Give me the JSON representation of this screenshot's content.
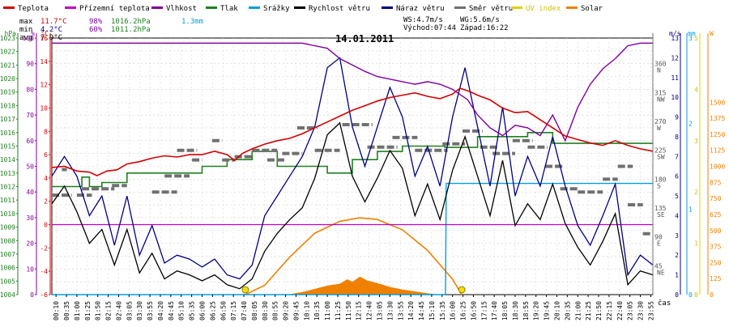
{
  "chart_data": {
    "type": "line",
    "title": "14.01.2011",
    "legend": [
      {
        "key": "temp",
        "label": "Teplota",
        "color": "#d40000"
      },
      {
        "key": "feels",
        "label": "Přízemní teplota",
        "color": "#c000c0"
      },
      {
        "key": "hum",
        "label": "Vlhkost",
        "color": "#8000a0"
      },
      {
        "key": "press",
        "label": "Tlak",
        "color": "#208020"
      },
      {
        "key": "rain",
        "label": "Srážky",
        "color": "#00a0e0"
      },
      {
        "key": "ws",
        "label": "Rychlost větru",
        "color": "#000000"
      },
      {
        "key": "gust",
        "label": "Náraz větru",
        "color": "#000080"
      },
      {
        "key": "dir",
        "label": "Směr větru",
        "color": "#707070"
      },
      {
        "key": "uv",
        "label": "UV index",
        "color": "#e0d000"
      },
      {
        "key": "solar",
        "label": "Solar",
        "color": "#f08000"
      }
    ],
    "stats": {
      "max_label": "max",
      "max_temp": "11.7°C",
      "max_hum": "98%",
      "max_press": "1016.2hPa",
      "rain_total": "1.3mm",
      "min_label": "min",
      "min_temp": "4.2°C",
      "min_hum": "60%",
      "min_press": "1011.2hPa",
      "avg_label": "avg",
      "avg_temp": "7.9°C"
    },
    "wind_info": {
      "ws": "WS:4.7m/s",
      "wg": "WG:5.6m/s",
      "sunrise": "Východ:07:44",
      "sunset": "Západ:16:22"
    },
    "axes": {
      "hpa_title": "hPa",
      "pct_title": "%",
      "c_title": "°C",
      "ms_title": "m/s",
      "mm_title": "mm",
      "w_title": "W",
      "x_title": "čas",
      "hpa_ticks": [
        "1004",
        "1005",
        "1006",
        "1007",
        "1008",
        "1009",
        "1010",
        "1011",
        "1012",
        "1013",
        "1014",
        "1015",
        "1016",
        "1017",
        "1018",
        "1019",
        "1020",
        "1021",
        "1022",
        "1023"
      ],
      "pct_ticks": [
        "0",
        "10",
        "20",
        "30",
        "40",
        "50",
        "60",
        "70",
        "80",
        "90",
        "100"
      ],
      "c_ticks": [
        "-6",
        "-4",
        "-2",
        "0",
        "2",
        "4",
        "6",
        "8",
        "10",
        "12",
        "14",
        "16"
      ],
      "dir_ticks": [
        [
          "360",
          "N"
        ],
        [
          "315",
          "NW"
        ],
        [
          "270",
          "W"
        ],
        [
          "225",
          "SW"
        ],
        [
          "180",
          "S"
        ],
        [
          "135",
          "SE"
        ],
        [
          "90",
          "E"
        ],
        [
          "45",
          "NE"
        ]
      ],
      "ms_ticks": [
        "0",
        "1",
        "2",
        "3",
        "4",
        "5",
        "6",
        "7",
        "8",
        "9",
        "10",
        "11",
        "12",
        "13"
      ],
      "mm_ticks": [
        "0",
        "1",
        "2",
        "3"
      ],
      "uv_ticks": [
        "0",
        "1",
        "2",
        "3",
        "4",
        "5"
      ],
      "w_ticks": [
        "0",
        "125",
        "250",
        "375",
        "500",
        "625",
        "750",
        "875",
        "1000",
        "1125",
        "1250",
        "1375",
        "1500"
      ],
      "x_ticks": [
        "00:10",
        "00:35",
        "01:00",
        "01:25",
        "01:50",
        "02:15",
        "02:40",
        "03:05",
        "03:30",
        "03:55",
        "04:20",
        "04:45",
        "05:10",
        "05:35",
        "06:00",
        "06:25",
        "06:50",
        "07:15",
        "07:40",
        "08:05",
        "08:30",
        "08:55",
        "09:20",
        "09:45",
        "10:10",
        "10:35",
        "11:00",
        "11:25",
        "11:50",
        "12:15",
        "12:40",
        "13:05",
        "13:30",
        "13:55",
        "14:20",
        "14:45",
        "15:10",
        "15:35",
        "16:00",
        "16:25",
        "16:50",
        "17:15",
        "17:40",
        "18:05",
        "18:30",
        "18:55",
        "19:20",
        "19:45",
        "20:10",
        "20:35",
        "21:00",
        "21:25",
        "21:50",
        "22:15",
        "22:40",
        "23:05",
        "23:30",
        "23:55"
      ],
      "temp_range": [
        -6,
        16
      ],
      "hum_range": [
        0,
        100
      ],
      "press_range": [
        1004,
        1023
      ],
      "wind_range": [
        0,
        13
      ],
      "dir_range": [
        0,
        400
      ],
      "rain_range": [
        0,
        3
      ],
      "solar_range": [
        0,
        1500
      ],
      "hours_range": [
        0,
        24
      ]
    },
    "series": {
      "temp_c": [
        [
          0,
          4.9
        ],
        [
          0.5,
          5.0
        ],
        [
          1.0,
          4.6
        ],
        [
          1.5,
          4.5
        ],
        [
          1.8,
          4.2
        ],
        [
          2.2,
          4.6
        ],
        [
          2.6,
          4.7
        ],
        [
          3.0,
          5.2
        ],
        [
          3.5,
          5.4
        ],
        [
          4.0,
          5.7
        ],
        [
          4.5,
          5.9
        ],
        [
          5.0,
          5.8
        ],
        [
          5.5,
          6.0
        ],
        [
          6.0,
          6.0
        ],
        [
          6.5,
          6.3
        ],
        [
          7.0,
          6.0
        ],
        [
          7.3,
          5.5
        ],
        [
          7.6,
          6.1
        ],
        [
          8.0,
          6.5
        ],
        [
          8.5,
          6.9
        ],
        [
          9.0,
          7.2
        ],
        [
          9.5,
          7.4
        ],
        [
          10.0,
          7.8
        ],
        [
          10.5,
          8.3
        ],
        [
          11.0,
          8.8
        ],
        [
          11.5,
          9.3
        ],
        [
          12.0,
          9.8
        ],
        [
          12.5,
          10.2
        ],
        [
          13.0,
          10.6
        ],
        [
          13.5,
          10.9
        ],
        [
          14.0,
          11.1
        ],
        [
          14.5,
          11.3
        ],
        [
          15.0,
          11.0
        ],
        [
          15.5,
          10.8
        ],
        [
          16.0,
          11.2
        ],
        [
          16.3,
          11.7
        ],
        [
          16.7,
          11.4
        ],
        [
          17.0,
          11.1
        ],
        [
          17.5,
          10.7
        ],
        [
          18.0,
          10.0
        ],
        [
          18.5,
          9.6
        ],
        [
          19.0,
          9.7
        ],
        [
          19.5,
          9.0
        ],
        [
          20.0,
          8.3
        ],
        [
          20.5,
          7.6
        ],
        [
          21.0,
          7.3
        ],
        [
          21.5,
          7.0
        ],
        [
          22.0,
          6.8
        ],
        [
          22.5,
          7.2
        ],
        [
          23.0,
          6.8
        ],
        [
          23.5,
          6.5
        ],
        [
          24.0,
          6.3
        ]
      ],
      "feels_c": [
        [
          0,
          0
        ],
        [
          24,
          0
        ]
      ],
      "hum_pct": [
        [
          0,
          98
        ],
        [
          10.0,
          98
        ],
        [
          11.0,
          96
        ],
        [
          11.5,
          92
        ],
        [
          12.5,
          87
        ],
        [
          13.0,
          85
        ],
        [
          14.0,
          83
        ],
        [
          14.5,
          82
        ],
        [
          15.0,
          83
        ],
        [
          15.5,
          82
        ],
        [
          16.0,
          80
        ],
        [
          16.6,
          76
        ],
        [
          17.0,
          70
        ],
        [
          17.5,
          65
        ],
        [
          18.0,
          62
        ],
        [
          18.5,
          66
        ],
        [
          19.0,
          65
        ],
        [
          19.5,
          62
        ],
        [
          20.0,
          70
        ],
        [
          20.5,
          60
        ],
        [
          21.0,
          73
        ],
        [
          21.5,
          82
        ],
        [
          22.0,
          88
        ],
        [
          22.5,
          92
        ],
        [
          23.0,
          97
        ],
        [
          23.5,
          98
        ],
        [
          24.0,
          98
        ]
      ],
      "press_hpa": [
        [
          0,
          1012.0
        ],
        [
          1.0,
          1012.0
        ],
        [
          1.2,
          1012.7
        ],
        [
          1.5,
          1012.0
        ],
        [
          2.0,
          1012.3
        ],
        [
          2.5,
          1012.3
        ],
        [
          3.0,
          1013.0
        ],
        [
          4.0,
          1013.0
        ],
        [
          5.0,
          1013.0
        ],
        [
          6.0,
          1013.5
        ],
        [
          7.0,
          1014.0
        ],
        [
          7.5,
          1014.0
        ],
        [
          8.0,
          1014.6
        ],
        [
          9.0,
          1013.5
        ],
        [
          10.0,
          1013.5
        ],
        [
          11.0,
          1013.0
        ],
        [
          12.0,
          1014.0
        ],
        [
          13.0,
          1014.6
        ],
        [
          14.0,
          1015.0
        ],
        [
          15.0,
          1015.0
        ],
        [
          15.7,
          1014.9
        ],
        [
          16.2,
          1014.9
        ],
        [
          17.0,
          1015.7
        ],
        [
          18.0,
          1015.7
        ],
        [
          19.0,
          1016.0
        ],
        [
          20.0,
          1015.2
        ],
        [
          21.0,
          1015.2
        ],
        [
          22.0,
          1015.2
        ],
        [
          23.0,
          1015.2
        ],
        [
          24.0,
          1015.2
        ]
      ],
      "ws_ms": [
        [
          0,
          4.6
        ],
        [
          0.5,
          5.5
        ],
        [
          1.0,
          4.2
        ],
        [
          1.5,
          2.6
        ],
        [
          2.0,
          3.3
        ],
        [
          2.5,
          1.5
        ],
        [
          3.0,
          3.3
        ],
        [
          3.5,
          1.1
        ],
        [
          4.0,
          2.1
        ],
        [
          4.5,
          0.8
        ],
        [
          5.0,
          1.2
        ],
        [
          5.5,
          1.0
        ],
        [
          6.0,
          0.7
        ],
        [
          6.5,
          1.0
        ],
        [
          7.0,
          0.5
        ],
        [
          7.5,
          0.3
        ],
        [
          8.0,
          0.8
        ],
        [
          8.5,
          2.2
        ],
        [
          9.0,
          3.1
        ],
        [
          9.5,
          3.8
        ],
        [
          10.0,
          4.4
        ],
        [
          10.5,
          5.9
        ],
        [
          11.0,
          8.1
        ],
        [
          11.5,
          8.7
        ],
        [
          12.0,
          6.0
        ],
        [
          12.5,
          4.7
        ],
        [
          13.0,
          5.9
        ],
        [
          13.5,
          7.3
        ],
        [
          14.0,
          6.4
        ],
        [
          14.5,
          4.0
        ],
        [
          15.0,
          5.6
        ],
        [
          15.5,
          3.8
        ],
        [
          16.0,
          6.3
        ],
        [
          16.5,
          8.0
        ],
        [
          17.0,
          6.0
        ],
        [
          17.5,
          4.0
        ],
        [
          18.0,
          6.8
        ],
        [
          18.5,
          3.5
        ],
        [
          19.0,
          4.6
        ],
        [
          19.5,
          3.8
        ],
        [
          20.0,
          5.6
        ],
        [
          20.5,
          3.6
        ],
        [
          21.0,
          2.4
        ],
        [
          21.5,
          1.5
        ],
        [
          22.0,
          2.7
        ],
        [
          22.5,
          4.1
        ],
        [
          23.0,
          0.5
        ],
        [
          23.5,
          1.2
        ],
        [
          24.0,
          1.0
        ]
      ],
      "gust_ms": [
        [
          0,
          6.0
        ],
        [
          0.5,
          7.0
        ],
        [
          1.0,
          6.0
        ],
        [
          1.5,
          4.0
        ],
        [
          2.0,
          5.0
        ],
        [
          2.5,
          2.5
        ],
        [
          3.0,
          5.0
        ],
        [
          3.5,
          2.0
        ],
        [
          4.0,
          3.5
        ],
        [
          4.5,
          1.6
        ],
        [
          5.0,
          2.0
        ],
        [
          5.5,
          1.8
        ],
        [
          6.0,
          1.4
        ],
        [
          6.5,
          1.8
        ],
        [
          7.0,
          1.0
        ],
        [
          7.5,
          0.8
        ],
        [
          8.0,
          1.5
        ],
        [
          8.5,
          4.0
        ],
        [
          9.0,
          5.0
        ],
        [
          9.5,
          6.0
        ],
        [
          10.0,
          7.0
        ],
        [
          10.5,
          8.5
        ],
        [
          11.0,
          11.5
        ],
        [
          11.5,
          12.0
        ],
        [
          12.0,
          8.5
        ],
        [
          12.5,
          6.5
        ],
        [
          13.0,
          8.5
        ],
        [
          13.5,
          10.5
        ],
        [
          14.0,
          9.0
        ],
        [
          14.5,
          6.0
        ],
        [
          15.0,
          7.5
        ],
        [
          15.5,
          5.5
        ],
        [
          16.0,
          9.0
        ],
        [
          16.5,
          11.5
        ],
        [
          17.0,
          8.5
        ],
        [
          17.5,
          5.5
        ],
        [
          18.0,
          9.5
        ],
        [
          18.5,
          5.0
        ],
        [
          19.0,
          7.0
        ],
        [
          19.5,
          5.5
        ],
        [
          20.0,
          8.0
        ],
        [
          20.5,
          5.5
        ],
        [
          21.0,
          3.5
        ],
        [
          21.5,
          2.5
        ],
        [
          22.0,
          4.0
        ],
        [
          22.5,
          5.6
        ],
        [
          23.0,
          1.0
        ],
        [
          23.5,
          2.0
        ],
        [
          24.0,
          1.5
        ]
      ],
      "dir_segments": [
        [
          0.0,
          0.8,
          155
        ],
        [
          0.4,
          0.6,
          195
        ],
        [
          1.2,
          2.5,
          165
        ],
        [
          1.0,
          1.6,
          155
        ],
        [
          2.4,
          3.0,
          170
        ],
        [
          4.0,
          5.0,
          160
        ],
        [
          4.5,
          5.5,
          185
        ],
        [
          5.0,
          5.8,
          225
        ],
        [
          5.6,
          6.0,
          210
        ],
        [
          6.4,
          6.8,
          240
        ],
        [
          6.8,
          7.3,
          210
        ],
        [
          7.3,
          8.0,
          215
        ],
        [
          8.0,
          9.0,
          225
        ],
        [
          8.6,
          9.3,
          210
        ],
        [
          9.2,
          10.0,
          220
        ],
        [
          9.8,
          10.6,
          260
        ],
        [
          10.5,
          11.5,
          225
        ],
        [
          11.6,
          12.8,
          265
        ],
        [
          12.6,
          13.8,
          230
        ],
        [
          13.6,
          14.6,
          245
        ],
        [
          14.5,
          15.8,
          225
        ],
        [
          15.6,
          16.5,
          235
        ],
        [
          16.4,
          17.2,
          255
        ],
        [
          17.1,
          17.8,
          230
        ],
        [
          17.6,
          18.5,
          220
        ],
        [
          18.4,
          19.2,
          240
        ],
        [
          19.0,
          19.8,
          230
        ],
        [
          19.7,
          20.4,
          200
        ],
        [
          20.3,
          21.0,
          165
        ],
        [
          21.0,
          22.0,
          160
        ],
        [
          22.0,
          22.6,
          180
        ],
        [
          22.6,
          23.2,
          200
        ],
        [
          23.0,
          23.6,
          140
        ],
        [
          23.6,
          24.0,
          95
        ]
      ],
      "rain_mm": [
        [
          0,
          0
        ],
        [
          15.72,
          0
        ],
        [
          15.75,
          1.3
        ],
        [
          24,
          1.3
        ]
      ],
      "solar_w": [
        [
          7.73,
          0
        ],
        [
          8.5,
          55
        ],
        [
          9.5,
          220
        ],
        [
          10.5,
          360
        ],
        [
          11.5,
          430
        ],
        [
          12.3,
          450
        ],
        [
          13.0,
          440
        ],
        [
          14.0,
          380
        ],
        [
          15.0,
          260
        ],
        [
          16.0,
          90
        ],
        [
          16.37,
          0
        ]
      ],
      "solar_actual_w": [
        [
          9.4,
          0
        ],
        [
          10.0,
          20
        ],
        [
          10.5,
          45
        ],
        [
          11.0,
          70
        ],
        [
          11.5,
          85
        ],
        [
          11.8,
          120
        ],
        [
          12.0,
          100
        ],
        [
          12.3,
          140
        ],
        [
          12.6,
          110
        ],
        [
          13.0,
          90
        ],
        [
          13.5,
          60
        ],
        [
          14.0,
          40
        ],
        [
          14.5,
          25
        ],
        [
          15.0,
          10
        ],
        [
          15.5,
          0
        ]
      ],
      "sun_markers": [
        7.73,
        16.37
      ]
    }
  }
}
